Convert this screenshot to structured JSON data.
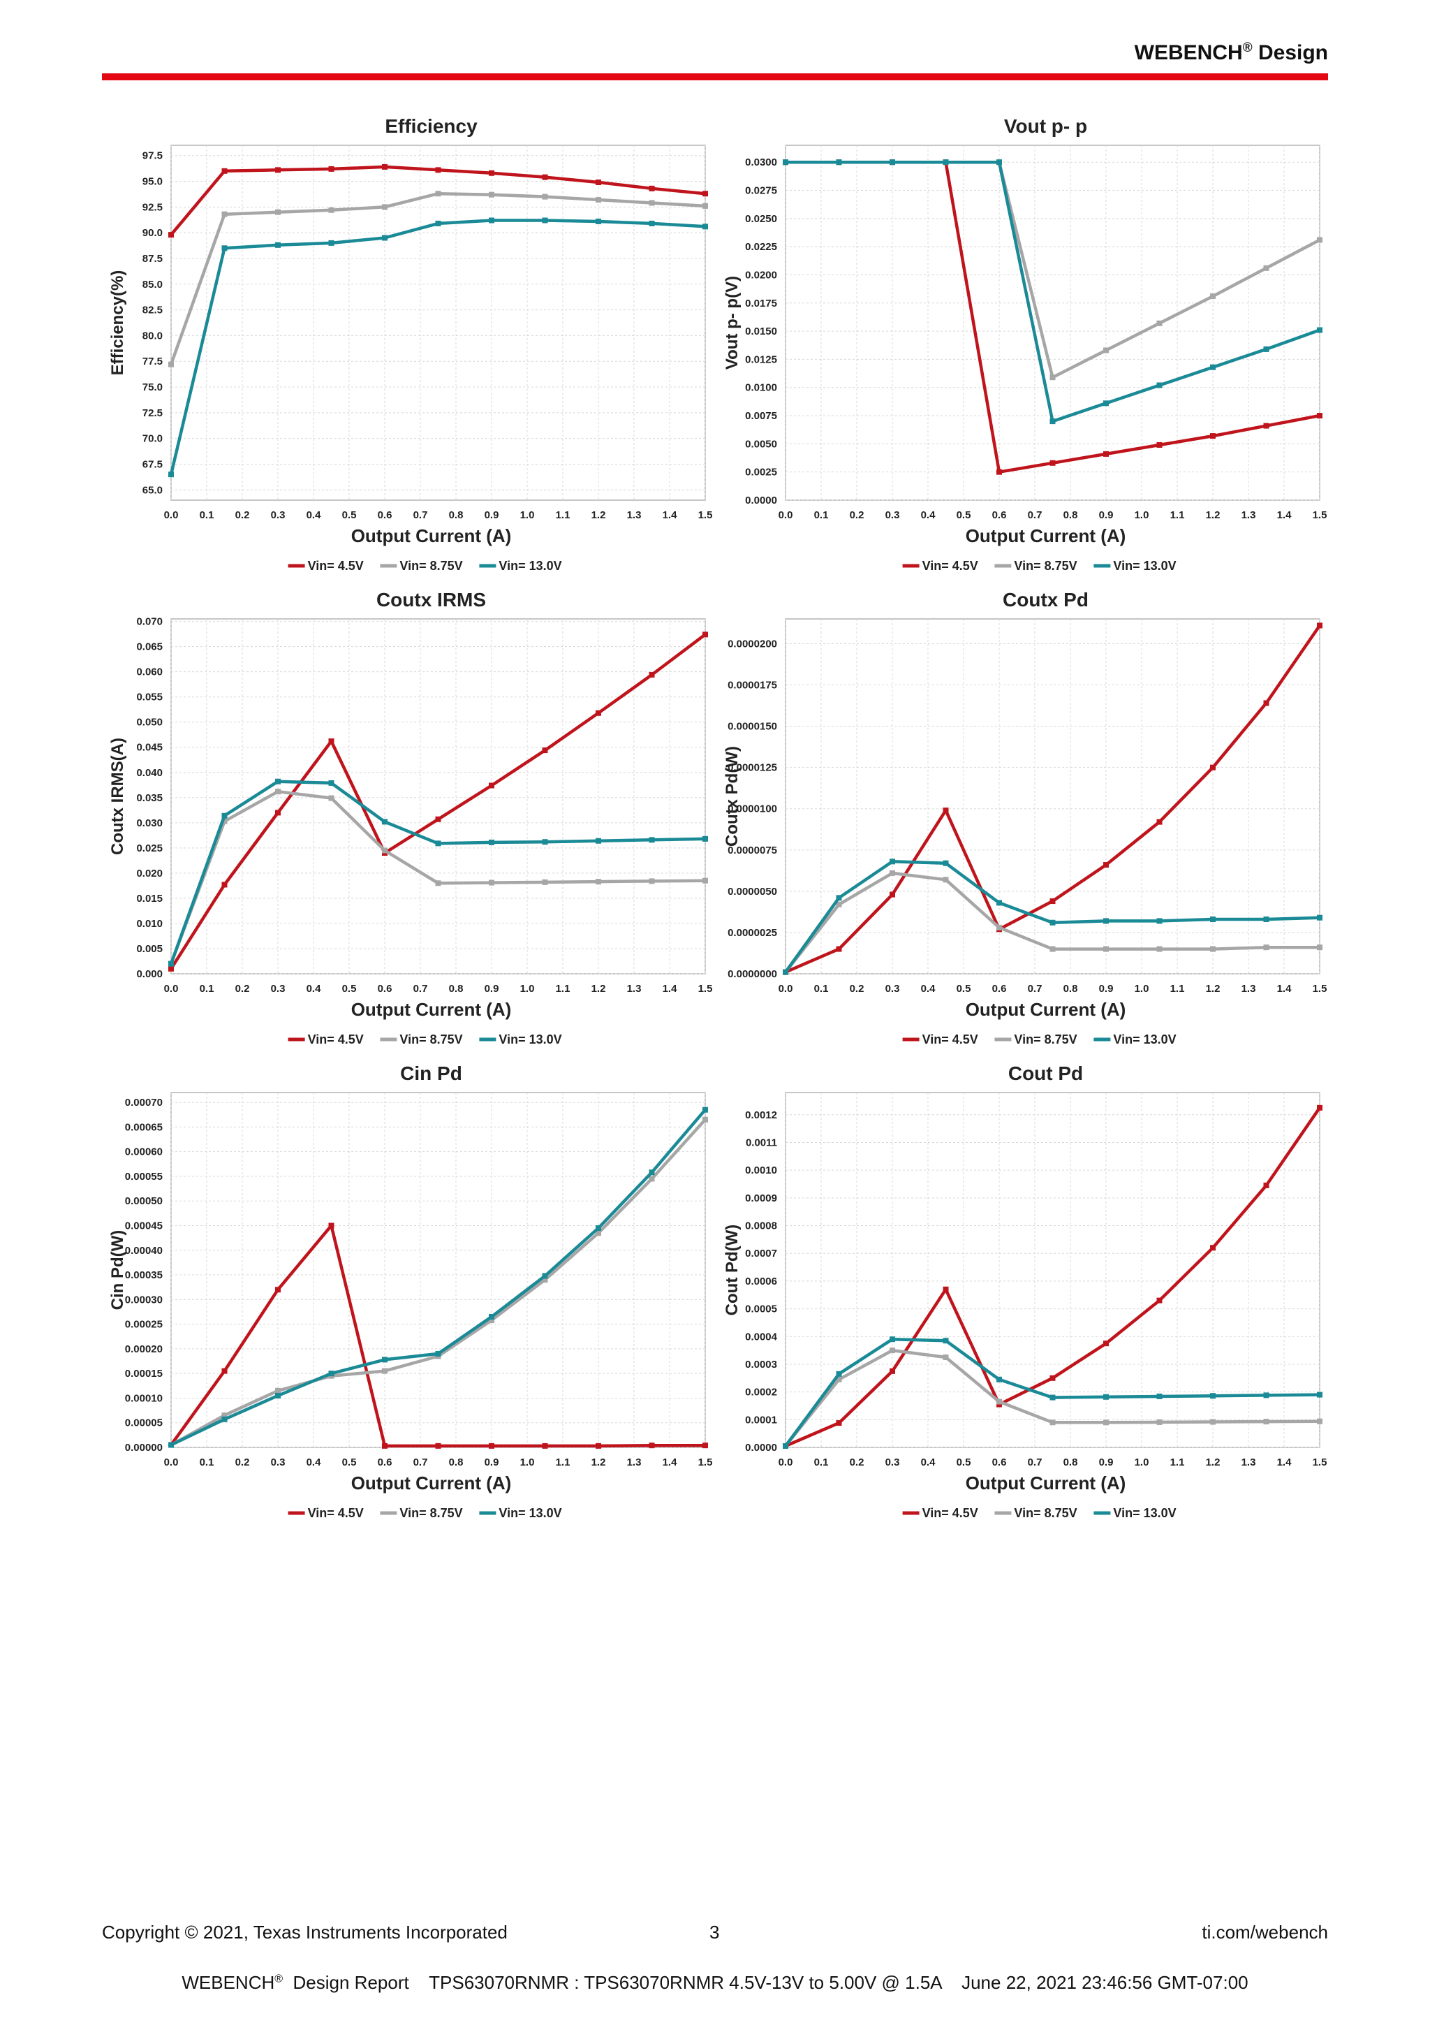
{
  "header": {
    "brand": "WEBENCH",
    "reg": "®",
    "title": "Design"
  },
  "footer": {
    "copyright": "Copyright © 2021, Texas Instruments Incorporated",
    "page_number": "3",
    "url": "ti.com/webench",
    "report_brand": "WEBENCH",
    "report_reg": "®",
    "report_text": "Design Report    TPS63070RNMR : TPS63070RNMR 4.5V-13V to 5.00V @ 1.5A    June 22, 2021 23:46:56 GMT-07:00"
  },
  "colors": {
    "rule": "#e30613",
    "vin_4_5": "#c0141c",
    "vin_8_75": "#a6a6a6",
    "vin_13": "#1a8a96"
  },
  "chart_data": [
    {
      "type": "line",
      "title": "Efficiency",
      "xlabel": "Output Current (A)",
      "ylabel": "Efficiency(%)",
      "xlim": [
        0,
        1.5
      ],
      "ylim": [
        64,
        98.5
      ],
      "x_ticks": [
        "0.0",
        "0.1",
        "0.2",
        "0.3",
        "0.4",
        "0.5",
        "0.6",
        "0.7",
        "0.8",
        "0.9",
        "1.0",
        "1.1",
        "1.2",
        "1.3",
        "1.4",
        "1.5"
      ],
      "y_ticks": [
        "65.0",
        "67.5",
        "70.0",
        "72.5",
        "75.0",
        "77.5",
        "80.0",
        "82.5",
        "85.0",
        "87.5",
        "90.0",
        "92.5",
        "95.0",
        "97.5"
      ],
      "grid": true,
      "legend_position": "bottom",
      "series": [
        {
          "name": "Vin= 4.5V",
          "color": "#c0141c",
          "x": [
            0,
            0.15,
            0.3,
            0.45,
            0.6,
            0.75,
            0.9,
            1.05,
            1.2,
            1.35,
            1.5
          ],
          "y": [
            89.8,
            96.0,
            96.1,
            96.2,
            96.4,
            96.1,
            95.8,
            95.4,
            94.9,
            94.3,
            93.8
          ]
        },
        {
          "name": "Vin= 8.75V",
          "color": "#a6a6a6",
          "x": [
            0,
            0.15,
            0.3,
            0.45,
            0.6,
            0.75,
            0.9,
            1.05,
            1.2,
            1.35,
            1.5
          ],
          "y": [
            77.2,
            91.8,
            92.0,
            92.2,
            92.5,
            93.8,
            93.7,
            93.5,
            93.2,
            92.9,
            92.6
          ]
        },
        {
          "name": "Vin= 13.0V",
          "color": "#1a8a96",
          "x": [
            0,
            0.15,
            0.3,
            0.45,
            0.6,
            0.75,
            0.9,
            1.05,
            1.2,
            1.35,
            1.5
          ],
          "y": [
            66.5,
            88.5,
            88.8,
            89.0,
            89.5,
            90.9,
            91.2,
            91.2,
            91.1,
            90.9,
            90.6
          ]
        }
      ]
    },
    {
      "type": "line",
      "title": "Vout p- p",
      "xlabel": "Output Current (A)",
      "ylabel": "Vout p- p(V)",
      "xlim": [
        0,
        1.5
      ],
      "ylim": [
        0,
        0.0315
      ],
      "x_ticks": [
        "0.0",
        "0.1",
        "0.2",
        "0.3",
        "0.4",
        "0.5",
        "0.6",
        "0.7",
        "0.8",
        "0.9",
        "1.0",
        "1.1",
        "1.2",
        "1.3",
        "1.4",
        "1.5"
      ],
      "y_ticks": [
        "0.0000",
        "0.0025",
        "0.0050",
        "0.0075",
        "0.0100",
        "0.0125",
        "0.0150",
        "0.0175",
        "0.0200",
        "0.0225",
        "0.0250",
        "0.0275",
        "0.0300"
      ],
      "grid": true,
      "legend_position": "bottom",
      "series": [
        {
          "name": "Vin= 4.5V",
          "color": "#c0141c",
          "x": [
            0,
            0.15,
            0.3,
            0.45,
            0.6,
            0.75,
            0.9,
            1.05,
            1.2,
            1.35,
            1.5
          ],
          "y": [
            0.03,
            0.03,
            0.03,
            0.03,
            0.0025,
            0.0033,
            0.0041,
            0.0049,
            0.0057,
            0.0066,
            0.0075
          ]
        },
        {
          "name": "Vin= 8.75V",
          "color": "#a6a6a6",
          "x": [
            0,
            0.15,
            0.3,
            0.45,
            0.6,
            0.75,
            0.9,
            1.05,
            1.2,
            1.35,
            1.5
          ],
          "y": [
            0.03,
            0.03,
            0.03,
            0.03,
            0.03,
            0.0109,
            0.0133,
            0.0157,
            0.0181,
            0.0206,
            0.0231
          ]
        },
        {
          "name": "Vin= 13.0V",
          "color": "#1a8a96",
          "x": [
            0,
            0.15,
            0.3,
            0.45,
            0.6,
            0.75,
            0.9,
            1.05,
            1.2,
            1.35,
            1.5
          ],
          "y": [
            0.03,
            0.03,
            0.03,
            0.03,
            0.03,
            0.007,
            0.0086,
            0.0102,
            0.0118,
            0.0134,
            0.0151
          ]
        }
      ]
    },
    {
      "type": "line",
      "title": "Coutx IRMS",
      "xlabel": "Output Current (A)",
      "ylabel": "Coutx IRMS(A)",
      "xlim": [
        0,
        1.5
      ],
      "ylim": [
        0,
        0.0705
      ],
      "x_ticks": [
        "0.0",
        "0.1",
        "0.2",
        "0.3",
        "0.4",
        "0.5",
        "0.6",
        "0.7",
        "0.8",
        "0.9",
        "1.0",
        "1.1",
        "1.2",
        "1.3",
        "1.4",
        "1.5"
      ],
      "y_ticks": [
        "0.000",
        "0.005",
        "0.010",
        "0.015",
        "0.020",
        "0.025",
        "0.030",
        "0.035",
        "0.040",
        "0.045",
        "0.050",
        "0.055",
        "0.060",
        "0.065",
        "0.070"
      ],
      "grid": true,
      "legend_position": "bottom",
      "series": [
        {
          "name": "Vin= 4.5V",
          "color": "#c0141c",
          "x": [
            0,
            0.15,
            0.3,
            0.45,
            0.6,
            0.75,
            0.9,
            1.05,
            1.2,
            1.35,
            1.5
          ],
          "y": [
            0.001,
            0.0177,
            0.032,
            0.0462,
            0.024,
            0.0307,
            0.0374,
            0.0444,
            0.0518,
            0.0594,
            0.0674
          ]
        },
        {
          "name": "Vin= 8.75V",
          "color": "#a6a6a6",
          "x": [
            0,
            0.15,
            0.3,
            0.45,
            0.6,
            0.75,
            0.9,
            1.05,
            1.2,
            1.35,
            1.5
          ],
          "y": [
            0.002,
            0.0303,
            0.0362,
            0.0349,
            0.0245,
            0.018,
            0.0181,
            0.0182,
            0.0183,
            0.0184,
            0.0185
          ]
        },
        {
          "name": "Vin= 13.0V",
          "color": "#1a8a96",
          "x": [
            0,
            0.15,
            0.3,
            0.45,
            0.6,
            0.75,
            0.9,
            1.05,
            1.2,
            1.35,
            1.5
          ],
          "y": [
            0.002,
            0.0314,
            0.0382,
            0.0379,
            0.0302,
            0.0259,
            0.0261,
            0.0262,
            0.0264,
            0.0266,
            0.0268
          ]
        }
      ]
    },
    {
      "type": "line",
      "title": "Coutx Pd",
      "xlabel": "Output Current (A)",
      "ylabel": "Coutx Pd(W)",
      "xlim": [
        0,
        1.5
      ],
      "ylim": [
        0,
        2.15e-05
      ],
      "x_ticks": [
        "0.0",
        "0.1",
        "0.2",
        "0.3",
        "0.4",
        "0.5",
        "0.6",
        "0.7",
        "0.8",
        "0.9",
        "1.0",
        "1.1",
        "1.2",
        "1.3",
        "1.4",
        "1.5"
      ],
      "y_ticks": [
        "0.0000000",
        "0.0000025",
        "0.0000050",
        "0.0000075",
        "0.0000100",
        "0.0000125",
        "0.0000150",
        "0.0000175",
        "0.0000200"
      ],
      "grid": true,
      "legend_position": "bottom",
      "series": [
        {
          "name": "Vin= 4.5V",
          "color": "#c0141c",
          "x": [
            0,
            0.15,
            0.3,
            0.45,
            0.6,
            0.75,
            0.9,
            1.05,
            1.2,
            1.35,
            1.5
          ],
          "y": [
            1e-07,
            1.5e-06,
            4.8e-06,
            9.9e-06,
            2.7e-06,
            4.4e-06,
            6.6e-06,
            9.2e-06,
            1.25e-05,
            1.64e-05,
            2.11e-05
          ]
        },
        {
          "name": "Vin= 8.75V",
          "color": "#a6a6a6",
          "x": [
            0,
            0.15,
            0.3,
            0.45,
            0.6,
            0.75,
            0.9,
            1.05,
            1.2,
            1.35,
            1.5
          ],
          "y": [
            1e-07,
            4.2e-06,
            6.1e-06,
            5.7e-06,
            2.8e-06,
            1.5e-06,
            1.5e-06,
            1.5e-06,
            1.5e-06,
            1.6e-06,
            1.6e-06
          ]
        },
        {
          "name": "Vin= 13.0V",
          "color": "#1a8a96",
          "x": [
            0,
            0.15,
            0.3,
            0.45,
            0.6,
            0.75,
            0.9,
            1.05,
            1.2,
            1.35,
            1.5
          ],
          "y": [
            1e-07,
            4.6e-06,
            6.8e-06,
            6.7e-06,
            4.3e-06,
            3.1e-06,
            3.2e-06,
            3.2e-06,
            3.3e-06,
            3.3e-06,
            3.4e-06
          ]
        }
      ]
    },
    {
      "type": "line",
      "title": "Cin Pd",
      "xlabel": "Output Current (A)",
      "ylabel": "Cin Pd(W)",
      "xlim": [
        0,
        1.5
      ],
      "ylim": [
        0,
        0.00072
      ],
      "x_ticks": [
        "0.0",
        "0.1",
        "0.2",
        "0.3",
        "0.4",
        "0.5",
        "0.6",
        "0.7",
        "0.8",
        "0.9",
        "1.0",
        "1.1",
        "1.2",
        "1.3",
        "1.4",
        "1.5"
      ],
      "y_ticks": [
        "0.00000",
        "0.00005",
        "0.00010",
        "0.00015",
        "0.00020",
        "0.00025",
        "0.00030",
        "0.00035",
        "0.00040",
        "0.00045",
        "0.00050",
        "0.00055",
        "0.00060",
        "0.00065",
        "0.00070"
      ],
      "grid": true,
      "legend_position": "bottom",
      "series": [
        {
          "name": "Vin= 4.5V",
          "color": "#c0141c",
          "x": [
            0,
            0.15,
            0.3,
            0.45,
            0.6,
            0.75,
            0.9,
            1.05,
            1.2,
            1.35,
            1.5
          ],
          "y": [
            5e-06,
            0.000155,
            0.00032,
            0.00045,
            3e-06,
            3e-06,
            3e-06,
            3e-06,
            3e-06,
            4e-06,
            4e-06
          ]
        },
        {
          "name": "Vin= 8.75V",
          "color": "#a6a6a6",
          "x": [
            0,
            0.15,
            0.3,
            0.45,
            0.6,
            0.75,
            0.9,
            1.05,
            1.2,
            1.35,
            1.5
          ],
          "y": [
            5e-06,
            6.5e-05,
            0.000115,
            0.000145,
            0.000155,
            0.000185,
            0.000258,
            0.00034,
            0.000435,
            0.000545,
            0.000665
          ]
        },
        {
          "name": "Vin= 13.0V",
          "color": "#1a8a96",
          "x": [
            0,
            0.15,
            0.3,
            0.45,
            0.6,
            0.75,
            0.9,
            1.05,
            1.2,
            1.35,
            1.5
          ],
          "y": [
            5e-06,
            5.7e-05,
            0.000105,
            0.00015,
            0.000178,
            0.00019,
            0.000265,
            0.000348,
            0.000445,
            0.000558,
            0.000685
          ]
        }
      ]
    },
    {
      "type": "line",
      "title": "Cout Pd",
      "xlabel": "Output Current (A)",
      "ylabel": "Cout Pd(W)",
      "xlim": [
        0,
        1.5
      ],
      "ylim": [
        0,
        0.00128
      ],
      "x_ticks": [
        "0.0",
        "0.1",
        "0.2",
        "0.3",
        "0.4",
        "0.5",
        "0.6",
        "0.7",
        "0.8",
        "0.9",
        "1.0",
        "1.1",
        "1.2",
        "1.3",
        "1.4",
        "1.5"
      ],
      "y_ticks": [
        "0.0000",
        "0.0001",
        "0.0002",
        "0.0003",
        "0.0004",
        "0.0005",
        "0.0006",
        "0.0007",
        "0.0008",
        "0.0009",
        "0.0010",
        "0.0011",
        "0.0012"
      ],
      "grid": true,
      "legend_position": "bottom",
      "series": [
        {
          "name": "Vin= 4.5V",
          "color": "#c0141c",
          "x": [
            0,
            0.15,
            0.3,
            0.45,
            0.6,
            0.75,
            0.9,
            1.05,
            1.2,
            1.35,
            1.5
          ],
          "y": [
            5e-06,
            8.8e-05,
            0.000275,
            0.00057,
            0.000155,
            0.00025,
            0.000375,
            0.00053,
            0.00072,
            0.000945,
            0.001225
          ]
        },
        {
          "name": "Vin= 8.75V",
          "color": "#a6a6a6",
          "x": [
            0,
            0.15,
            0.3,
            0.45,
            0.6,
            0.75,
            0.9,
            1.05,
            1.2,
            1.35,
            1.5
          ],
          "y": [
            5e-06,
            0.000245,
            0.00035,
            0.000325,
            0.000165,
            9e-05,
            9e-05,
            9.1e-05,
            9.2e-05,
            9.3e-05,
            9.4e-05
          ]
        },
        {
          "name": "Vin= 13.0V",
          "color": "#1a8a96",
          "x": [
            0,
            0.15,
            0.3,
            0.45,
            0.6,
            0.75,
            0.9,
            1.05,
            1.2,
            1.35,
            1.5
          ],
          "y": [
            5e-06,
            0.000265,
            0.00039,
            0.000385,
            0.000245,
            0.00018,
            0.000182,
            0.000184,
            0.000186,
            0.000188,
            0.00019
          ]
        }
      ]
    }
  ]
}
